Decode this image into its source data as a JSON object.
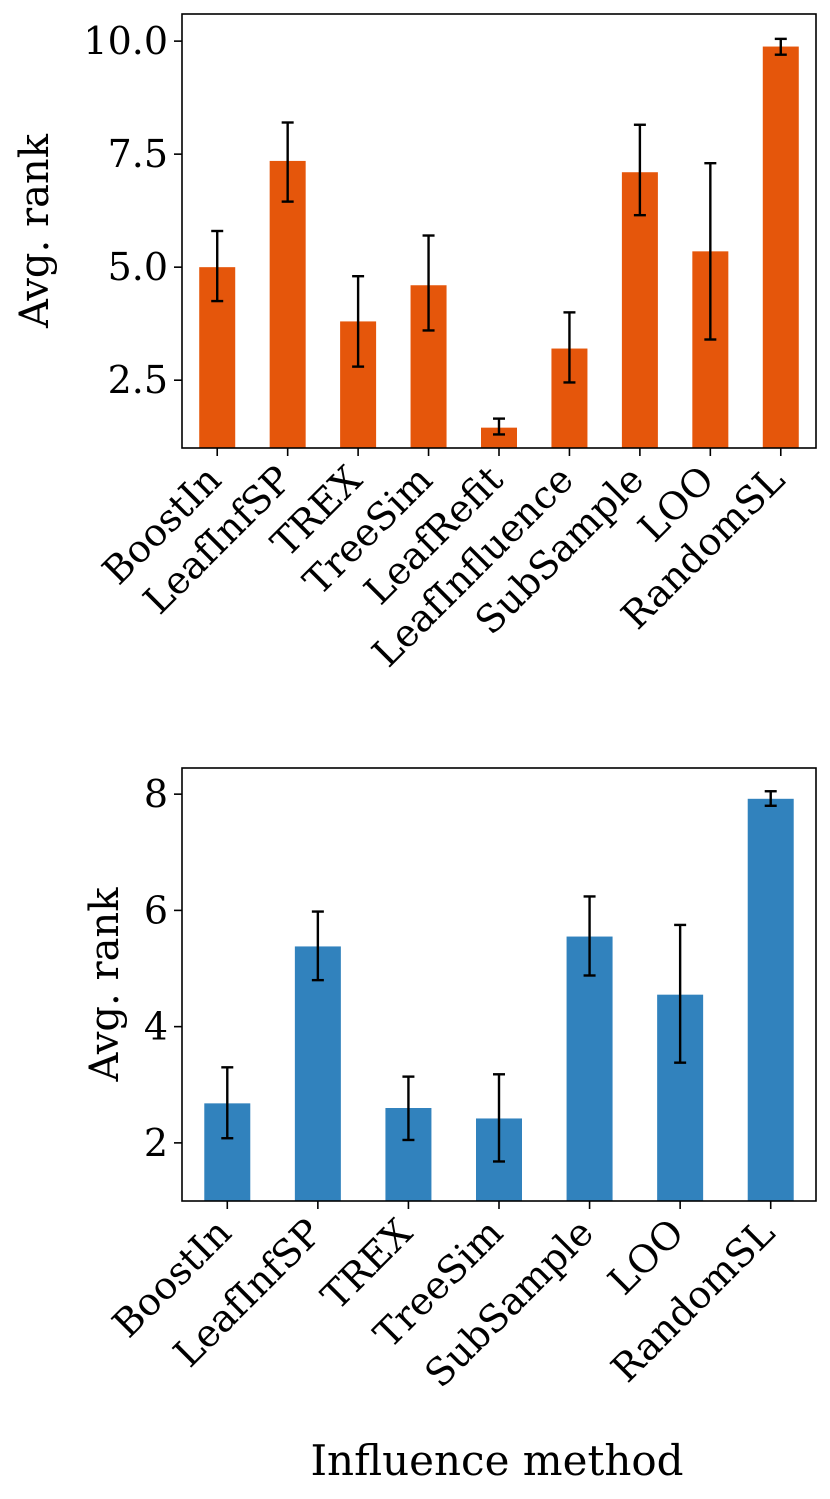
{
  "colors": {
    "top_bar": "#e5560b",
    "bottom_bar": "#3182bd",
    "error": "#000000"
  },
  "chart_data": [
    {
      "type": "bar",
      "title": "",
      "xlabel": "",
      "ylabel": "Avg. rank",
      "ylim": [
        1.0,
        10.6
      ],
      "yticks": [
        2.5,
        5.0,
        7.5,
        10.0
      ],
      "ytick_labels": [
        "2.5",
        "5.0",
        "7.5",
        "10.0"
      ],
      "categories": [
        "BoostIn",
        "LeafInfSP",
        "TREX",
        "TreeSim",
        "LeafRefit",
        "LeafInfluence",
        "SubSample",
        "LOO",
        "RandomSL"
      ],
      "values": [
        5.0,
        7.35,
        3.8,
        4.6,
        1.45,
        3.2,
        7.1,
        5.35,
        9.88
      ],
      "err_low": [
        4.25,
        6.45,
        2.8,
        3.6,
        1.3,
        2.45,
        6.15,
        3.4,
        9.7
      ],
      "err_high": [
        5.8,
        8.2,
        4.8,
        5.7,
        1.65,
        4.0,
        8.15,
        7.3,
        10.05
      ]
    },
    {
      "type": "bar",
      "title": "",
      "xlabel": "Influence method",
      "ylabel": "Avg. rank",
      "ylim": [
        1.0,
        8.45
      ],
      "yticks": [
        2,
        4,
        6,
        8
      ],
      "ytick_labels": [
        "2",
        "4",
        "6",
        "8"
      ],
      "categories": [
        "BoostIn",
        "LeafInfSP",
        "TREX",
        "TreeSim",
        "SubSample",
        "LOO",
        "RandomSL"
      ],
      "values": [
        2.68,
        5.38,
        2.6,
        2.42,
        5.55,
        4.55,
        7.92
      ],
      "err_low": [
        2.08,
        4.8,
        2.05,
        1.68,
        4.88,
        3.38,
        7.8
      ],
      "err_high": [
        3.3,
        5.98,
        3.14,
        3.18,
        6.24,
        5.75,
        8.05
      ]
    }
  ]
}
